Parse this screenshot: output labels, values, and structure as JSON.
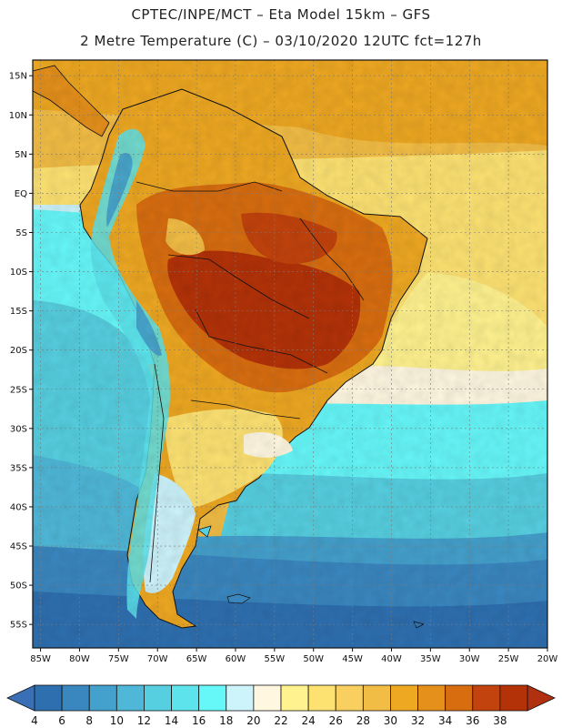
{
  "header": {
    "line1": "CPTEC/INPE/MCT –  Eta Model 15km – GFS",
    "line2": "2 Metre Temperature (C) – 03/10/2020 12UTC fct=127h"
  },
  "map_data": {
    "region": "South America",
    "lon_range": [
      -86,
      -20
    ],
    "lat_range": [
      -58,
      17
    ],
    "lat_ticks": [
      {
        "value": 15,
        "label": "15N"
      },
      {
        "value": 10,
        "label": "10N"
      },
      {
        "value": 5,
        "label": "5N"
      },
      {
        "value": 0,
        "label": "EQ"
      },
      {
        "value": -5,
        "label": "5S"
      },
      {
        "value": -10,
        "label": "10S"
      },
      {
        "value": -15,
        "label": "15S"
      },
      {
        "value": -20,
        "label": "20S"
      },
      {
        "value": -25,
        "label": "25S"
      },
      {
        "value": -30,
        "label": "30S"
      },
      {
        "value": -35,
        "label": "35S"
      },
      {
        "value": -40,
        "label": "40S"
      },
      {
        "value": -45,
        "label": "45S"
      },
      {
        "value": -50,
        "label": "50S"
      },
      {
        "value": -55,
        "label": "55S"
      }
    ],
    "lon_ticks": [
      {
        "value": -85,
        "label": "85W"
      },
      {
        "value": -80,
        "label": "80W"
      },
      {
        "value": -75,
        "label": "75W"
      },
      {
        "value": -70,
        "label": "70W"
      },
      {
        "value": -65,
        "label": "65W"
      },
      {
        "value": -60,
        "label": "60W"
      },
      {
        "value": -55,
        "label": "55W"
      },
      {
        "value": -50,
        "label": "50W"
      },
      {
        "value": -45,
        "label": "45W"
      },
      {
        "value": -40,
        "label": "40W"
      },
      {
        "value": -35,
        "label": "35W"
      },
      {
        "value": -30,
        "label": "30W"
      },
      {
        "value": -25,
        "label": "25W"
      },
      {
        "value": -20,
        "label": "20W"
      }
    ]
  },
  "colorbar": {
    "units": "C",
    "labels": [
      "4",
      "6",
      "8",
      "10",
      "12",
      "14",
      "16",
      "18",
      "20",
      "22",
      "24",
      "26",
      "28",
      "30",
      "32",
      "34",
      "36",
      "38"
    ],
    "colors": [
      "#2e6fb0",
      "#3a87c0",
      "#44a0cc",
      "#4fb8d8",
      "#56cfe0",
      "#5ce3ec",
      "#66f7f9",
      "#cdf3fb",
      "#fff7e0",
      "#fff28f",
      "#fde272",
      "#f9cf5f",
      "#f2bd45",
      "#eea822",
      "#e5901b",
      "#d86d10",
      "#c2430d",
      "#b33208"
    ],
    "low_extend_color": "#3a6fb5",
    "high_extend_color": "#b03010"
  }
}
